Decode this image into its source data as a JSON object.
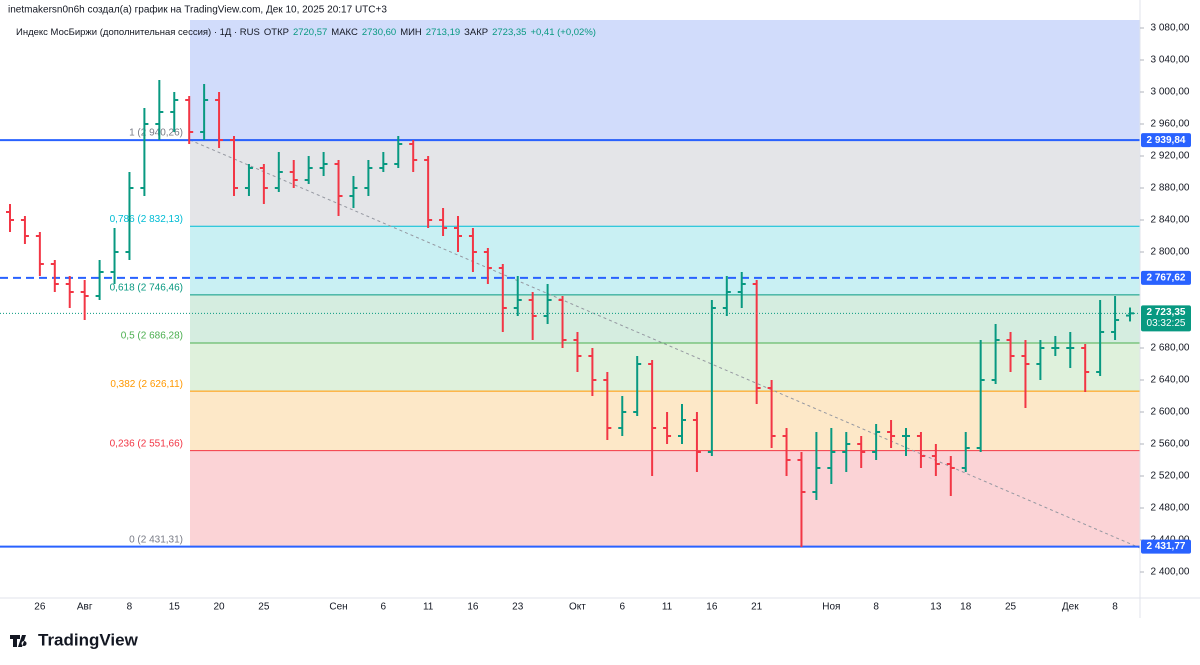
{
  "header": {
    "attribution": "inetmakersn0n6h создал(а) график на TradingView.com, Дек 10, 2025 20:17 UTC+3",
    "symbol": "Индекс МосБиржи (дополнительная сессия) · 1Д · RUS",
    "ohlc": [
      {
        "label": "ОТКР",
        "value": "2720,57"
      },
      {
        "label": "МАКС",
        "value": "2730,60"
      },
      {
        "label": "МИН",
        "value": "2713,19"
      },
      {
        "label": "ЗАКР",
        "value": "2723,35"
      }
    ],
    "change": "+0,41 (+0,02%)"
  },
  "footer": {
    "logo": "TradingView"
  },
  "chart_data": {
    "type": "ohlc",
    "categories": [
      null,
      null,
      "26",
      null,
      null,
      "Авг",
      null,
      null,
      "8",
      null,
      null,
      "15",
      null,
      null,
      "20",
      null,
      null,
      "25",
      null,
      null,
      null,
      null,
      "Сен",
      null,
      null,
      "6",
      null,
      null,
      "11",
      null,
      null,
      "16",
      null,
      null,
      "23",
      null,
      null,
      null,
      "Окт",
      null,
      null,
      "6",
      null,
      null,
      "11",
      null,
      null,
      "16",
      null,
      null,
      "21",
      null,
      null,
      null,
      null,
      "Ноя",
      null,
      null,
      "8",
      null,
      null,
      null,
      "13",
      null,
      "18",
      null,
      null,
      "25",
      null,
      null,
      null,
      "Дек",
      null,
      null,
      "8",
      null
    ],
    "open": [
      2850,
      2840,
      2820,
      2785,
      2760,
      2750,
      2745,
      2775,
      2800,
      2880,
      2960,
      2975,
      2990,
      2950,
      2990,
      2940,
      2880,
      2905,
      2880,
      2900,
      2890,
      2905,
      2910,
      2870,
      2880,
      2905,
      2910,
      2935,
      2915,
      2840,
      2830,
      2820,
      2800,
      2780,
      2730,
      2740,
      2720,
      2740,
      2690,
      2670,
      2640,
      2580,
      2600,
      2660,
      2580,
      2570,
      2590,
      2550,
      2730,
      2750,
      2760,
      2630,
      2570,
      2540,
      2500,
      2530,
      2550,
      2560,
      2550,
      2575,
      2570,
      2570,
      2545,
      2535,
      2530,
      2555,
      2640,
      2690,
      2670,
      2660,
      2680,
      2680,
      2680,
      2650,
      2700,
      2720.57
    ],
    "high": [
      2860,
      2845,
      2825,
      2790,
      2770,
      2765,
      2790,
      2830,
      2900,
      2980,
      3015,
      3000,
      2995,
      3010,
      3000,
      2945,
      2910,
      2910,
      2925,
      2915,
      2920,
      2925,
      2915,
      2895,
      2915,
      2925,
      2945,
      2940,
      2920,
      2855,
      2845,
      2830,
      2805,
      2785,
      2770,
      2750,
      2760,
      2745,
      2700,
      2680,
      2650,
      2620,
      2670,
      2665,
      2600,
      2610,
      2600,
      2740,
      2770,
      2775,
      2765,
      2640,
      2580,
      2550,
      2575,
      2580,
      2575,
      2570,
      2585,
      2590,
      2580,
      2575,
      2560,
      2545,
      2575,
      2690,
      2710,
      2700,
      2690,
      2690,
      2695,
      2700,
      2685,
      2740,
      2745,
      2730.6
    ],
    "low": [
      2825,
      2810,
      2770,
      2750,
      2730,
      2715,
      2740,
      2760,
      2790,
      2870,
      2940,
      2950,
      2935,
      2940,
      2930,
      2870,
      2870,
      2860,
      2875,
      2880,
      2885,
      2895,
      2845,
      2855,
      2870,
      2900,
      2905,
      2900,
      2830,
      2820,
      2800,
      2775,
      2760,
      2700,
      2720,
      2690,
      2710,
      2680,
      2650,
      2620,
      2565,
      2570,
      2595,
      2520,
      2560,
      2560,
      2525,
      2545,
      2720,
      2730,
      2610,
      2555,
      2520,
      2431.31,
      2490,
      2510,
      2525,
      2530,
      2540,
      2555,
      2545,
      2530,
      2520,
      2495,
      2525,
      2550,
      2635,
      2650,
      2605,
      2640,
      2670,
      2655,
      2625,
      2645,
      2690,
      2713.19
    ],
    "close": [
      2840,
      2820,
      2785,
      2760,
      2750,
      2745,
      2775,
      2800,
      2880,
      2960,
      2975,
      2990,
      2950,
      2990,
      2940,
      2880,
      2905,
      2880,
      2900,
      2890,
      2905,
      2910,
      2870,
      2880,
      2905,
      2910,
      2935,
      2915,
      2840,
      2830,
      2820,
      2800,
      2780,
      2730,
      2740,
      2720,
      2740,
      2690,
      2670,
      2640,
      2580,
      2600,
      2660,
      2580,
      2570,
      2590,
      2550,
      2730,
      2750,
      2760,
      2630,
      2570,
      2540,
      2500,
      2530,
      2550,
      2560,
      2550,
      2575,
      2570,
      2570,
      2545,
      2535,
      2530,
      2555,
      2640,
      2690,
      2670,
      2660,
      2680,
      2680,
      2680,
      2650,
      2700,
      2715,
      2723.35
    ],
    "up_color": "#089981",
    "down_color": "#f23645",
    "ylim": [
      2367.5,
      3090
    ],
    "yticks": [
      {
        "value": 2400,
        "label": "2 400,00"
      },
      {
        "value": 2440,
        "label": "2 440,00"
      },
      {
        "value": 2480,
        "label": "2 480,00"
      },
      {
        "value": 2520,
        "label": "2 520,00"
      },
      {
        "value": 2560,
        "label": "2 560,00"
      },
      {
        "value": 2600,
        "label": "2 600,00"
      },
      {
        "value": 2640,
        "label": "2 640,00"
      },
      {
        "value": 2680,
        "label": "2 680,00"
      },
      {
        "value": 2800,
        "label": "2 800,00"
      },
      {
        "value": 2840,
        "label": "2 840,00"
      },
      {
        "value": 2880,
        "label": "2 880,00"
      },
      {
        "value": 2920,
        "label": "2 920,00"
      },
      {
        "value": 2960,
        "label": "2 960,00"
      },
      {
        "value": 3000,
        "label": "3 000,00"
      },
      {
        "value": 3040,
        "label": "3 040,00"
      },
      {
        "value": 3080,
        "label": "3 080,00"
      }
    ],
    "fib_levels": [
      {
        "label": "0 (2 431,31)",
        "value": 2431.31,
        "color": "#787b86",
        "fill": "#fbd3d6"
      },
      {
        "label": "0,236 (2 551,66)",
        "value": 2551.66,
        "color": "#f23645",
        "fill": "#fde8c8"
      },
      {
        "label": "0,382 (2 626,11)",
        "value": 2626.11,
        "color": "#ff9800",
        "fill": "#dff1dc"
      },
      {
        "label": "0,5 (2 686,28)",
        "value": 2686.28,
        "color": "#4caf50",
        "fill": "#d5ede0"
      },
      {
        "label": "0,618 (2 746,46)",
        "value": 2746.46,
        "color": "#089981",
        "fill": "#c9f0f3"
      },
      {
        "label": "0,786 (2 832,13)",
        "value": 2832.13,
        "color": "#00bcd4",
        "fill": "#e4e5e8"
      },
      {
        "label": "1 (2 940,26)",
        "value": 2940.26,
        "color": "#787b86",
        "fill": "#d1dcfb"
      }
    ],
    "horizontal_lines": [
      {
        "value": 2939.84,
        "label": "2 939,84",
        "style": "solid",
        "color": "#2962ff"
      },
      {
        "value": 2767.62,
        "label": "2 767,62",
        "style": "dashed",
        "color": "#2962ff"
      },
      {
        "value": 2431.77,
        "label": "2 431,77",
        "style": "solid",
        "color": "#2962ff"
      }
    ],
    "last_price": {
      "value": 2723.35,
      "label": "2 723,35",
      "countdown": "03:32:25",
      "color": "#089981"
    }
  }
}
